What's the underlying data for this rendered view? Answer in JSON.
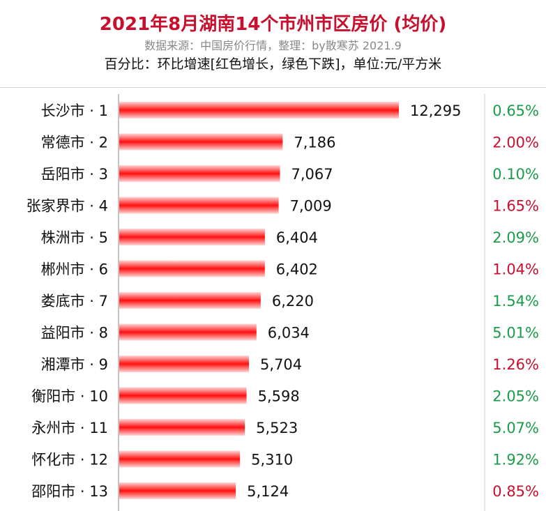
{
  "header": {
    "title": "2021年8月湖南14个市州市区房价 (均价)",
    "subtitle": "数据来源：中国房价行情，整理：by散寒苏 2021.9",
    "note": "百分比：环比增速[红色增长，绿色下跌]，单位:元/平方米"
  },
  "colors": {
    "bar": "#ff1010",
    "increase": "#c8102e",
    "decrease": "#1a9c4a",
    "title": "#c8102e"
  },
  "chart_data": {
    "type": "bar",
    "orientation": "horizontal",
    "title": "2021年8月湖南14个市州市区房价 (均价)",
    "unit": "元/平方米",
    "categories": [
      "长沙市 · 1",
      "常德市 · 2",
      "岳阳市 · 3",
      "张家界市 · 4",
      "株洲市 · 5",
      "郴州市 · 6",
      "娄底市 · 7",
      "益阳市 · 8",
      "湘潭市 · 9",
      "衡阳市 · 10",
      "永州市 · 11",
      "怀化市 · 12",
      "邵阳市 · 13"
    ],
    "values": [
      12295,
      7186,
      7067,
      7009,
      6404,
      6402,
      6220,
      6034,
      5704,
      5598,
      5523,
      5310,
      5124
    ],
    "value_labels": [
      "12,295",
      "7,186",
      "7,067",
      "7,009",
      "6,404",
      "6,402",
      "6,220",
      "6,034",
      "5,704",
      "5,598",
      "5,523",
      "5,310",
      "5,124"
    ],
    "mom_change": [
      "0.65%",
      "2.00%",
      "0.10%",
      "1.65%",
      "2.09%",
      "1.04%",
      "1.54%",
      "5.01%",
      "1.26%",
      "2.05%",
      "5.07%",
      "1.92%",
      "0.85%"
    ],
    "mom_direction": [
      "decrease",
      "increase",
      "decrease",
      "increase",
      "decrease",
      "increase",
      "decrease",
      "decrease",
      "increase",
      "decrease",
      "decrease",
      "decrease",
      "increase"
    ],
    "xlim": [
      0,
      12295
    ],
    "grid": false,
    "legend": "none"
  }
}
